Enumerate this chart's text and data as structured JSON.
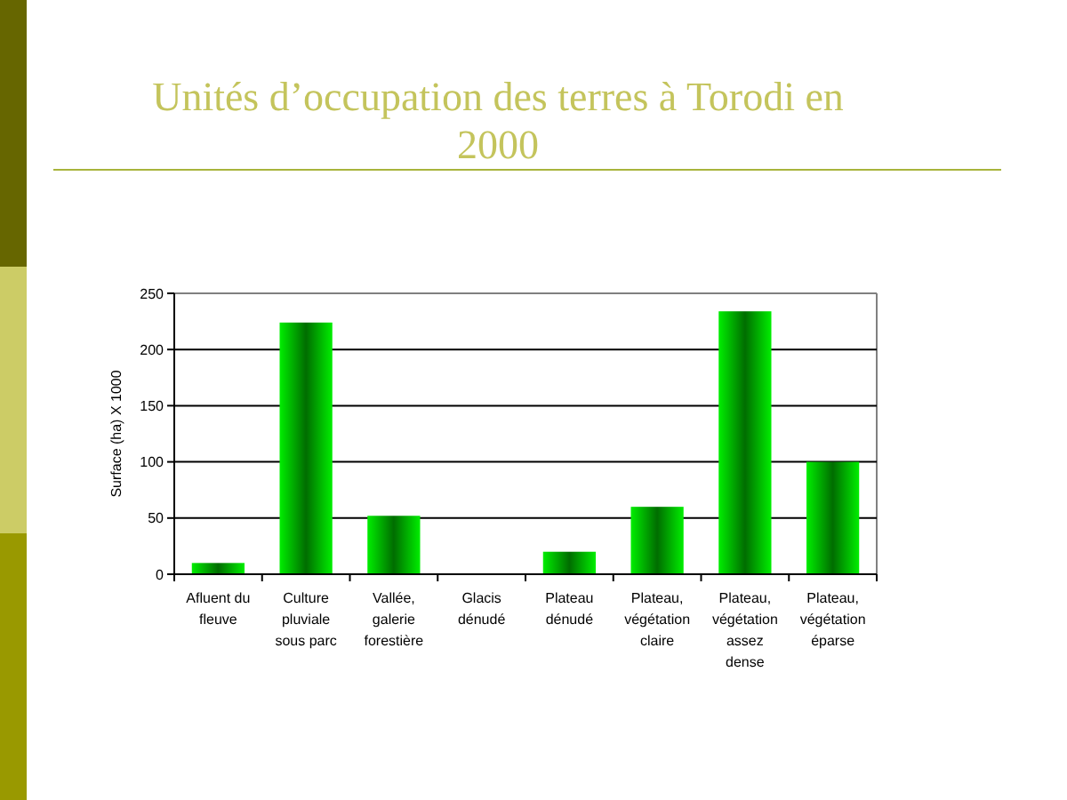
{
  "chart_data": {
    "type": "bar",
    "title": "Unités d’occupation des terres à Torodi en 2000",
    "ylabel": "Surface (ha) X 1000",
    "categories": [
      "Afluent du fleuve",
      "Culture pluviale sous parc",
      "Vallée, galerie forestière",
      "Glacis dénudé",
      "Plateau dénudé",
      "Plateau, végétation claire",
      "Plateau, végétation assez dense",
      "Plateau, végétation éparse"
    ],
    "values": [
      10,
      224,
      52,
      0,
      20,
      60,
      234,
      100
    ],
    "color": "#00ee00",
    "ylim": [
      0,
      250
    ],
    "yticks": [
      0,
      50,
      100,
      150,
      200,
      250
    ],
    "grid": "y"
  }
}
